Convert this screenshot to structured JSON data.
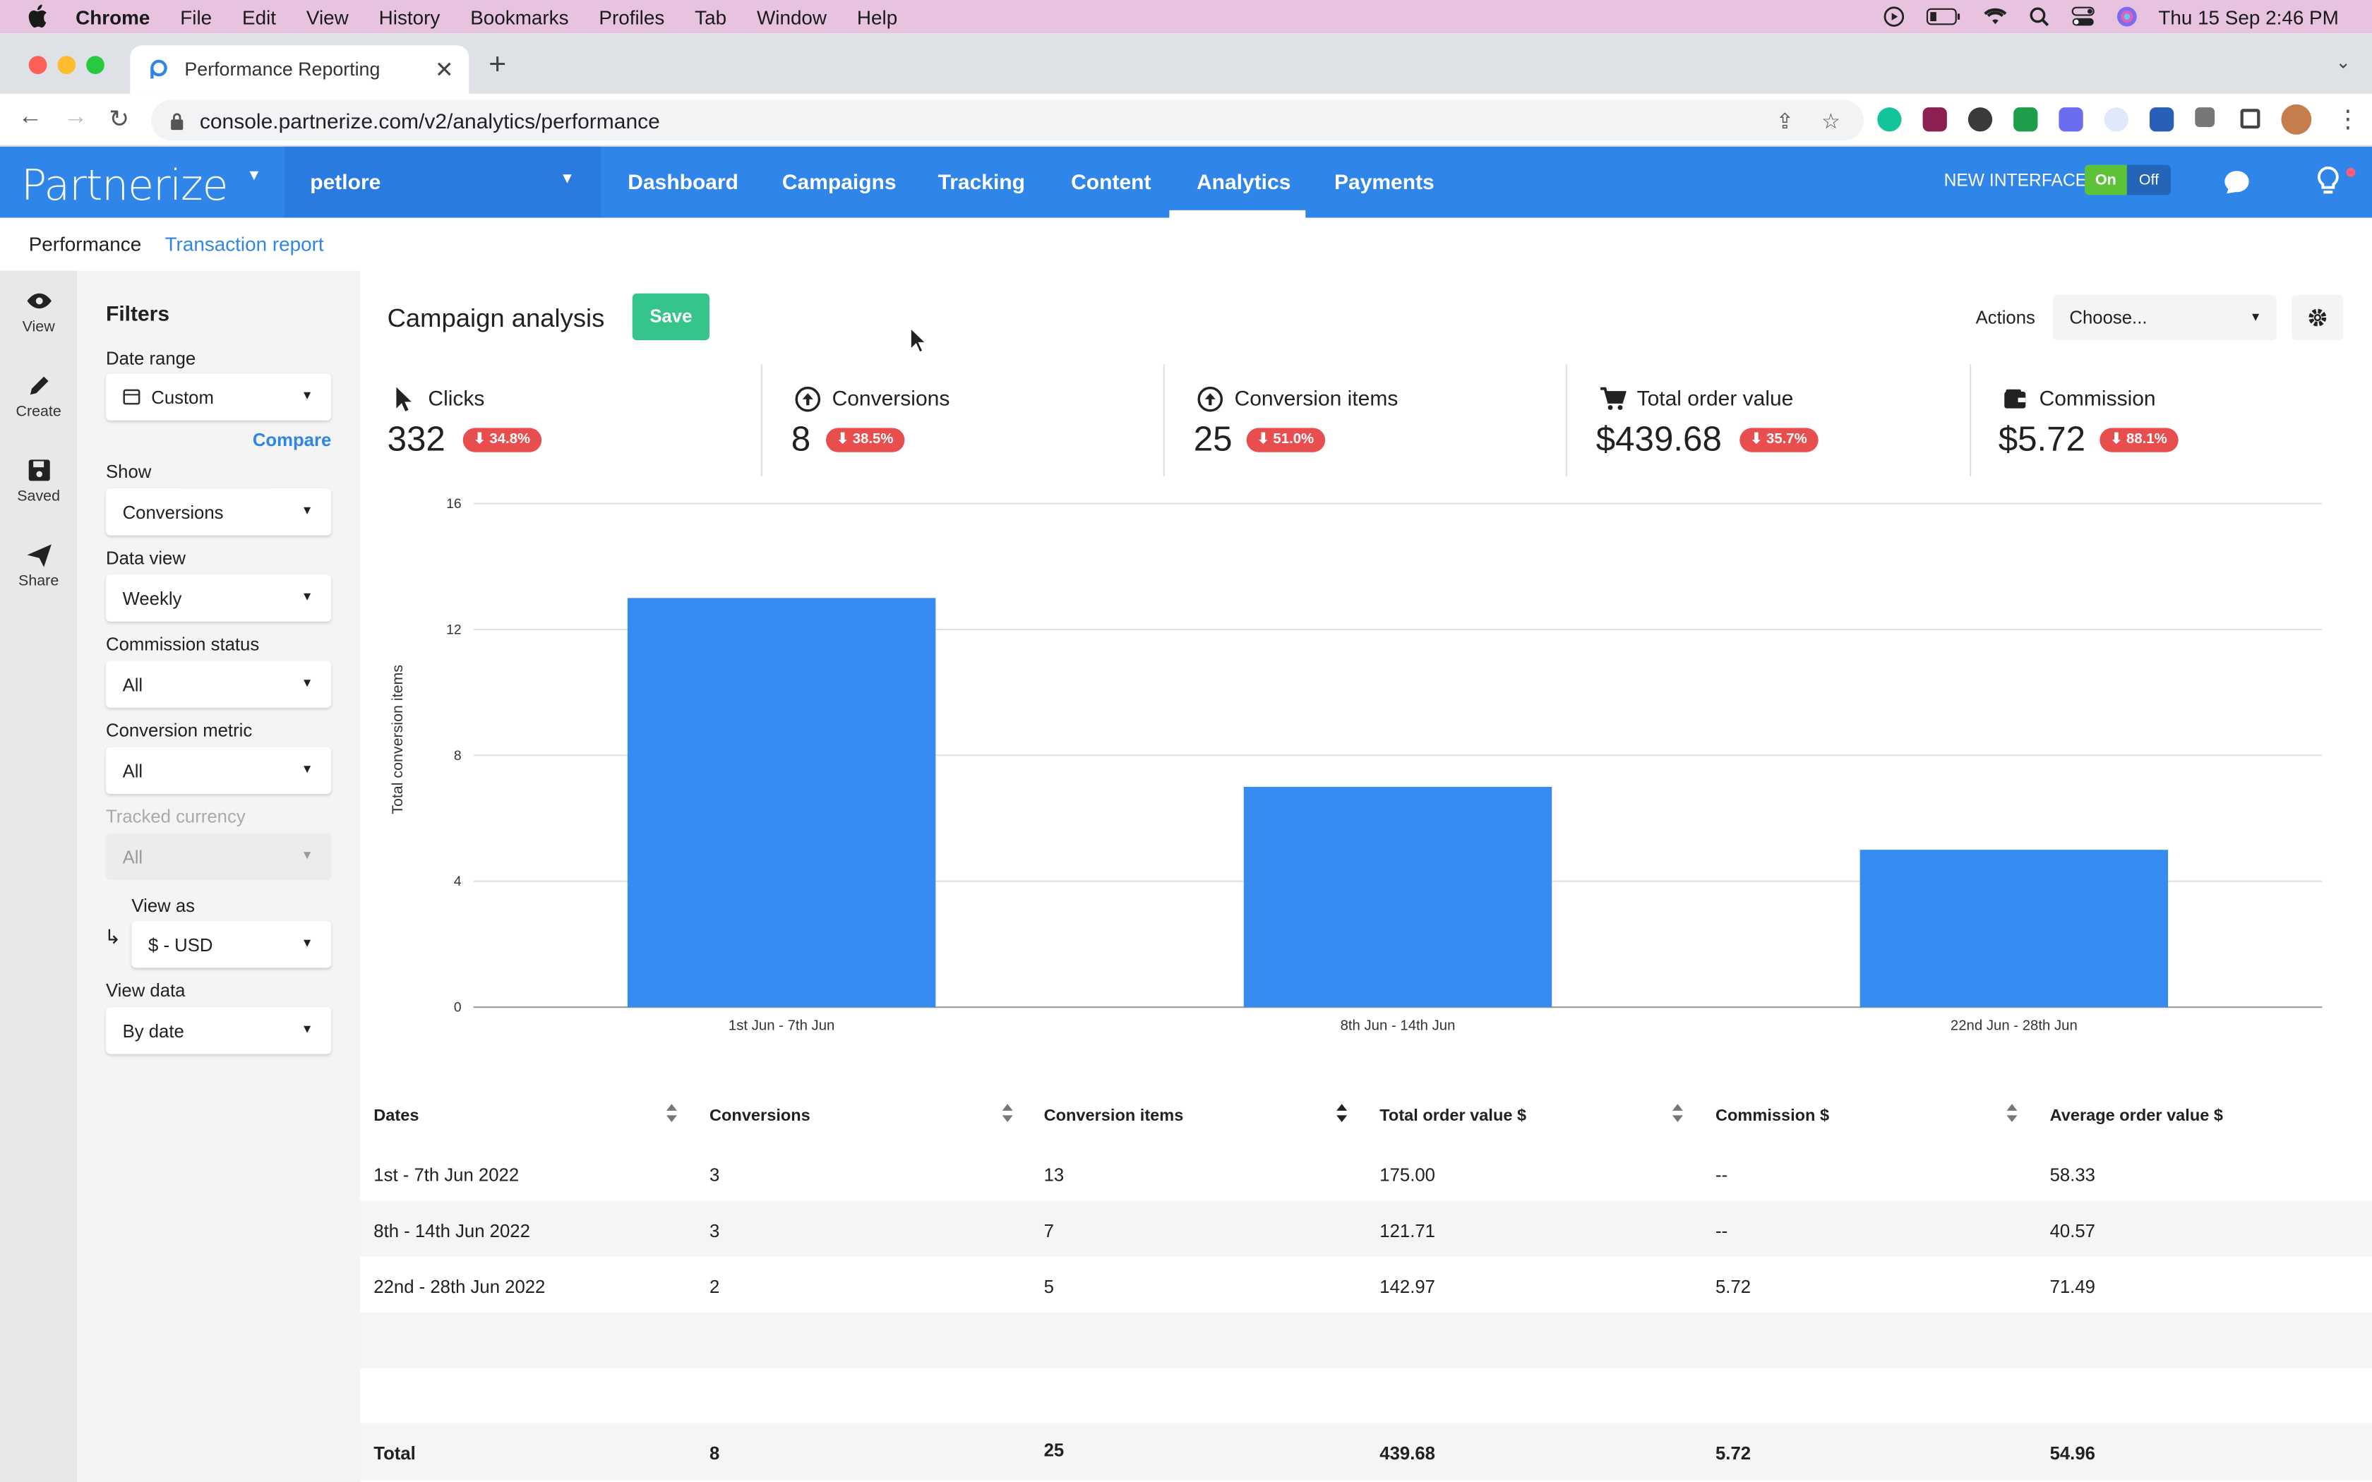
{
  "macbar": {
    "app_name": "Chrome",
    "menu": [
      "File",
      "Edit",
      "View",
      "History",
      "Bookmarks",
      "Profiles",
      "Tab",
      "Window",
      "Help"
    ],
    "datetime": "Thu 15 Sep  2:46 PM"
  },
  "browser": {
    "tab_title": "Performance Reporting",
    "url": "console.partnerize.com/v2/analytics/performance"
  },
  "appnav": {
    "logo": "Partnerize",
    "brand": "petlore",
    "items": [
      "Dashboard",
      "Campaigns",
      "Tracking",
      "Content",
      "Analytics",
      "Payments"
    ],
    "active": "Analytics",
    "new_interface_label": "NEW INTERFACE",
    "toggle_on": "On",
    "toggle_off": "Off"
  },
  "subnav": {
    "performance": "Performance",
    "transaction_report": "Transaction report"
  },
  "rail": {
    "view": "View",
    "create": "Create",
    "saved": "Saved",
    "share": "Share"
  },
  "filters": {
    "heading": "Filters",
    "date_range_label": "Date range",
    "date_range_value": "Custom",
    "compare": "Compare",
    "show_label": "Show",
    "show_value": "Conversions",
    "data_view_label": "Data view",
    "data_view_value": "Weekly",
    "commission_status_label": "Commission status",
    "commission_status_value": "All",
    "conversion_metric_label": "Conversion metric",
    "conversion_metric_value": "All",
    "tracked_currency_label": "Tracked currency",
    "tracked_currency_value": "All",
    "view_as_label": "View as",
    "view_as_value": "$ - USD",
    "view_data_label": "View data",
    "view_data_value": "By date"
  },
  "main": {
    "title": "Campaign analysis",
    "save": "Save",
    "actions_label": "Actions",
    "actions_value": "Choose..."
  },
  "metrics": [
    {
      "label": "Clicks",
      "value": "332",
      "change": "⬇ 34.8%"
    },
    {
      "label": "Conversions",
      "value": "8",
      "change": "⬇ 38.5%"
    },
    {
      "label": "Conversion items",
      "value": "25",
      "change": "⬇ 51.0%"
    },
    {
      "label": "Total order value",
      "value": "$439.68",
      "change": "⬇ 35.7%"
    },
    {
      "label": "Commission",
      "value": "$5.72",
      "change": "⬇ 88.1%"
    }
  ],
  "chart_data": {
    "type": "bar",
    "categories": [
      "1st Jun - 7th Jun",
      "8th Jun - 14th Jun",
      "22nd Jun - 28th Jun"
    ],
    "values": [
      13,
      7,
      5
    ],
    "ylabel": "Total conversion items",
    "xlabel": "",
    "ylim": [
      0,
      16
    ],
    "yticks": [
      0,
      4,
      8,
      12,
      16
    ],
    "bar_color": "#368cf0",
    "grid": true
  },
  "table": {
    "headers": [
      "Dates",
      "Conversions",
      "Conversion items",
      "Total order value $",
      "Commission $",
      "Average order value $"
    ],
    "rows": [
      [
        "1st - 7th Jun 2022",
        "3",
        "13",
        "175.00",
        "--",
        "58.33"
      ],
      [
        "8th - 14th Jun 2022",
        "3",
        "7",
        "121.71",
        "--",
        "40.57"
      ],
      [
        "22nd - 28th Jun 2022",
        "2",
        "5",
        "142.97",
        "5.72",
        "71.49"
      ]
    ],
    "total": [
      "Total",
      "8",
      "25",
      "439.68",
      "5.72",
      "54.96"
    ]
  },
  "colors": {
    "brand_blue": "#2f86e8",
    "save_green": "#35c48a",
    "badge_red": "#e94e4e",
    "bar_blue": "#368cf0"
  }
}
